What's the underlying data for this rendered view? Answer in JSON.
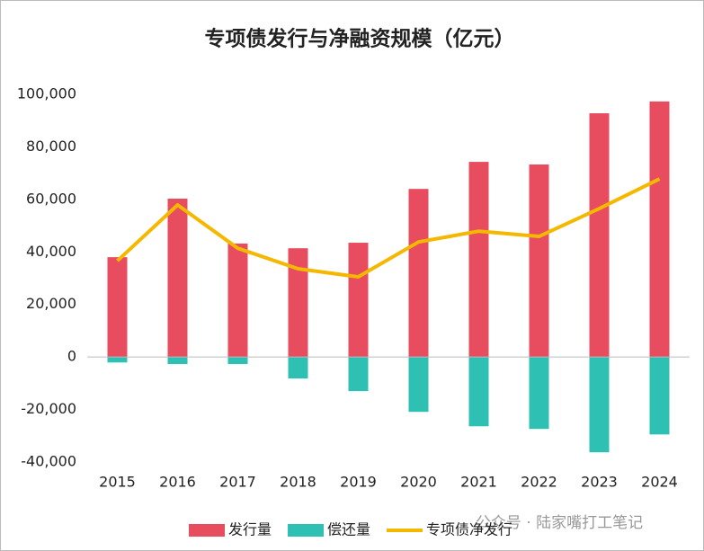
{
  "chart_data": {
    "type": "bar",
    "title": "专项债发行与净融资规模（亿元）",
    "categories": [
      "2015",
      "2016",
      "2017",
      "2018",
      "2019",
      "2020",
      "2021",
      "2022",
      "2023",
      "2024"
    ],
    "series": [
      {
        "name": "发行量",
        "type": "bar",
        "color": "#e84c5f",
        "values": [
          38000,
          60300,
          43200,
          41400,
          43500,
          64000,
          74300,
          73300,
          92800,
          97300
        ]
      },
      {
        "name": "偿还量",
        "type": "bar",
        "color": "#2ec1b3",
        "values": [
          -2100,
          -2700,
          -2700,
          -8200,
          -13000,
          -20900,
          -26400,
          -27400,
          -36300,
          -29500
        ]
      },
      {
        "name": "专项债净发行",
        "type": "line",
        "color": "#f5b800",
        "values": [
          36600,
          57900,
          41400,
          33600,
          30500,
          43800,
          47900,
          45900,
          56500,
          67800
        ]
      }
    ],
    "ylim": [
      -40000,
      100000
    ],
    "yticks": [
      {
        "value": -40000,
        "label": "-40,000"
      },
      {
        "value": -20000,
        "label": "-20,000"
      },
      0,
      {
        "value": 20000,
        "label": "20,000"
      },
      {
        "value": 40000,
        "label": "40,000"
      },
      {
        "value": 60000,
        "label": "60,000"
      },
      {
        "value": 80000,
        "label": "80,000"
      },
      {
        "value": 100000,
        "label": "100,000"
      }
    ],
    "grid": false,
    "legend": "bottom",
    "watermark": "公众号 · 陆家嘴打工笔记"
  }
}
